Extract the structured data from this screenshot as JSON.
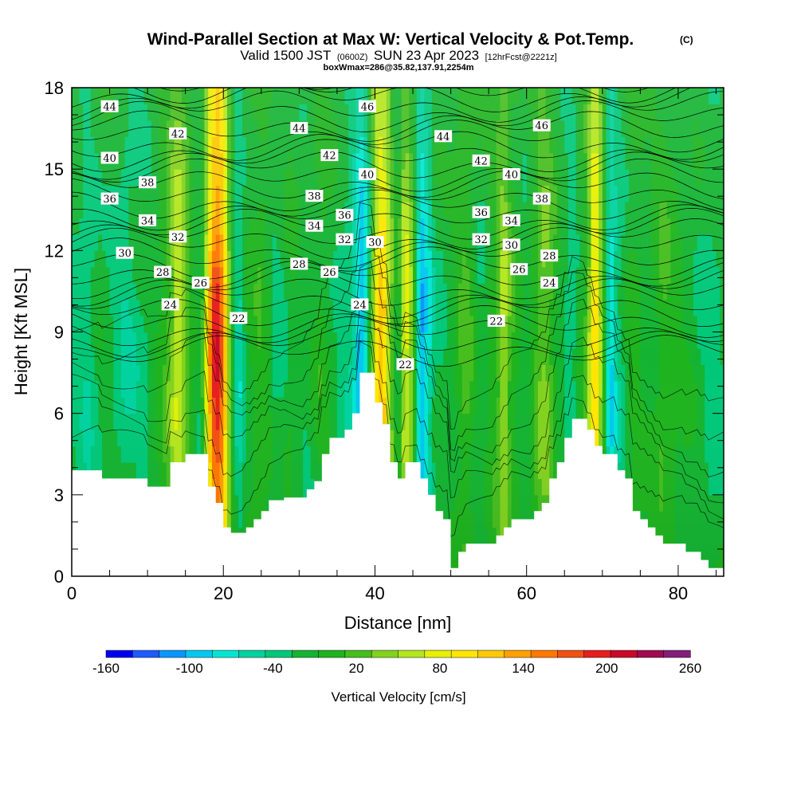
{
  "chart_data": {
    "type": "heatmap",
    "title": "Wind-Parallel Section at Max W: Vertical Velocity & Pot.Temp.",
    "title_mark": "(C)",
    "subtitle_parts": [
      "Valid 1500 JST",
      "(0600Z)",
      "SUN 23 Apr 2023",
      "[12hrFcst@2221z]"
    ],
    "subtitle2": "boxWmax=286@35.82,137.91,2254m",
    "xlabel": "Distance [nm]",
    "ylabel": "Height [Kft MSL]",
    "xlim": [
      0,
      86
    ],
    "ylim": [
      0,
      18
    ],
    "x_ticks": [
      0,
      20,
      40,
      60,
      80
    ],
    "y_ticks": [
      0,
      3,
      6,
      9,
      12,
      15,
      18
    ],
    "colorbar": {
      "label": "Vertical Velocity [cm/s]",
      "tick_labels": [
        "-160",
        "-100",
        "-40",
        "20",
        "80",
        "140",
        "200",
        "260"
      ],
      "tick_values": [
        -160,
        -100,
        -40,
        20,
        80,
        140,
        200,
        260
      ],
      "min": -160,
      "max": 260,
      "step": 20,
      "colors": [
        "#0000f0",
        "#1e5aff",
        "#0a96ff",
        "#00c8f0",
        "#00e6d2",
        "#00d2a0",
        "#00c878",
        "#14b432",
        "#1eb41e",
        "#46be1e",
        "#82d21e",
        "#b4e61e",
        "#e6f000",
        "#ffe600",
        "#ffc800",
        "#ffa000",
        "#ff7800",
        "#f05014",
        "#e61e1e",
        "#c80a28",
        "#a00a50",
        "#821e78"
      ]
    },
    "terrain_nm_kft": [
      [
        0,
        3.9
      ],
      [
        1,
        3.9
      ],
      [
        2,
        3.9
      ],
      [
        3,
        3.9
      ],
      [
        4,
        3.6
      ],
      [
        5,
        3.6
      ],
      [
        6,
        3.6
      ],
      [
        7,
        3.6
      ],
      [
        8,
        3.6
      ],
      [
        9,
        3.6
      ],
      [
        10,
        3.3
      ],
      [
        11,
        3.3
      ],
      [
        12,
        3.3
      ],
      [
        13,
        4.2
      ],
      [
        14,
        4.2
      ],
      [
        15,
        4.5
      ],
      [
        16,
        4.5
      ],
      [
        17,
        4.5
      ],
      [
        18,
        3.3
      ],
      [
        19,
        2.7
      ],
      [
        20,
        1.8
      ],
      [
        21,
        1.6
      ],
      [
        22,
        1.6
      ],
      [
        23,
        1.8
      ],
      [
        24,
        2.1
      ],
      [
        25,
        2.4
      ],
      [
        26,
        2.8
      ],
      [
        27,
        2.8
      ],
      [
        28,
        2.9
      ],
      [
        29,
        2.9
      ],
      [
        30,
        2.9
      ],
      [
        31,
        3.2
      ],
      [
        32,
        3.5
      ],
      [
        33,
        4.5
      ],
      [
        34,
        5.1
      ],
      [
        35,
        5.1
      ],
      [
        36,
        5.4
      ],
      [
        37,
        6.0
      ],
      [
        38,
        7.5
      ],
      [
        39,
        7.5
      ],
      [
        40,
        6.4
      ],
      [
        41,
        5.6
      ],
      [
        42,
        4.2
      ],
      [
        43,
        3.6
      ],
      [
        44,
        4.2
      ],
      [
        45,
        4.2
      ],
      [
        46,
        3.6
      ],
      [
        47,
        3.0
      ],
      [
        48,
        2.4
      ],
      [
        49,
        2.1
      ],
      [
        50,
        0.3
      ],
      [
        51,
        0.9
      ],
      [
        52,
        1.2
      ],
      [
        53,
        1.2
      ],
      [
        54,
        1.2
      ],
      [
        55,
        1.2
      ],
      [
        56,
        1.5
      ],
      [
        57,
        1.8
      ],
      [
        58,
        2.1
      ],
      [
        59,
        2.1
      ],
      [
        60,
        2.1
      ],
      [
        61,
        2.4
      ],
      [
        62,
        2.7
      ],
      [
        63,
        3.6
      ],
      [
        64,
        4.2
      ],
      [
        65,
        5.1
      ],
      [
        66,
        5.8
      ],
      [
        67,
        5.8
      ],
      [
        68,
        5.4
      ],
      [
        69,
        4.8
      ],
      [
        70,
        4.5
      ],
      [
        71,
        4.5
      ],
      [
        72,
        3.9
      ],
      [
        73,
        3.6
      ],
      [
        74,
        2.4
      ],
      [
        75,
        2.1
      ],
      [
        76,
        1.8
      ],
      [
        77,
        1.5
      ],
      [
        78,
        1.2
      ],
      [
        79,
        1.2
      ],
      [
        80,
        1.2
      ],
      [
        81,
        0.9
      ],
      [
        82,
        0.9
      ],
      [
        83,
        0.6
      ],
      [
        84,
        0.3
      ],
      [
        85,
        0.3
      ],
      [
        86,
        0.3
      ]
    ],
    "w_columns_nm_cms": [
      [
        0,
        -20
      ],
      [
        2,
        -40
      ],
      [
        4,
        -10
      ],
      [
        7,
        -40
      ],
      [
        10,
        -20
      ],
      [
        12,
        10
      ],
      [
        13,
        40
      ],
      [
        14,
        90
      ],
      [
        15,
        50
      ],
      [
        16,
        0
      ],
      [
        17,
        -20
      ],
      [
        18,
        120
      ],
      [
        19,
        230
      ],
      [
        20,
        170
      ],
      [
        21,
        10
      ],
      [
        22,
        -60
      ],
      [
        23,
        -10
      ],
      [
        25,
        20
      ],
      [
        27,
        -30
      ],
      [
        29,
        0
      ],
      [
        31,
        -20
      ],
      [
        33,
        10
      ],
      [
        35,
        -20
      ],
      [
        37,
        -40
      ],
      [
        38,
        -110
      ],
      [
        39,
        -60
      ],
      [
        40,
        90
      ],
      [
        41,
        150
      ],
      [
        42,
        60
      ],
      [
        43,
        -20
      ],
      [
        44,
        100
      ],
      [
        45,
        40
      ],
      [
        46,
        -110
      ],
      [
        47,
        -70
      ],
      [
        48,
        -20
      ],
      [
        50,
        -10
      ],
      [
        52,
        30
      ],
      [
        54,
        -20
      ],
      [
        56,
        20
      ],
      [
        57,
        70
      ],
      [
        58,
        20
      ],
      [
        60,
        -20
      ],
      [
        62,
        50
      ],
      [
        63,
        40
      ],
      [
        64,
        0
      ],
      [
        66,
        -40
      ],
      [
        68,
        30
      ],
      [
        69,
        140
      ],
      [
        70,
        40
      ],
      [
        71,
        -90
      ],
      [
        72,
        -40
      ],
      [
        74,
        10
      ],
      [
        76,
        -10
      ],
      [
        78,
        20
      ],
      [
        80,
        0
      ],
      [
        82,
        -10
      ],
      [
        84,
        -30
      ],
      [
        86,
        -20
      ]
    ],
    "theta_labels": [
      {
        "text": "44",
        "x": 5,
        "y": 17.3
      },
      {
        "text": "42",
        "x": 14,
        "y": 16.3
      },
      {
        "text": "40",
        "x": 5,
        "y": 15.4
      },
      {
        "text": "38",
        "x": 10,
        "y": 14.5
      },
      {
        "text": "36",
        "x": 5,
        "y": 13.9
      },
      {
        "text": "34",
        "x": 10,
        "y": 13.1
      },
      {
        "text": "32",
        "x": 14,
        "y": 12.5
      },
      {
        "text": "30",
        "x": 7,
        "y": 11.9
      },
      {
        "text": "28",
        "x": 12,
        "y": 11.2
      },
      {
        "text": "26",
        "x": 17,
        "y": 10.8
      },
      {
        "text": "24",
        "x": 13,
        "y": 10.0
      },
      {
        "text": "22",
        "x": 22,
        "y": 9.5
      },
      {
        "text": "46",
        "x": 39,
        "y": 17.3
      },
      {
        "text": "44",
        "x": 30,
        "y": 16.5
      },
      {
        "text": "42",
        "x": 34,
        "y": 15.5
      },
      {
        "text": "40",
        "x": 39,
        "y": 14.8
      },
      {
        "text": "38",
        "x": 32,
        "y": 14.0
      },
      {
        "text": "36",
        "x": 36,
        "y": 13.3
      },
      {
        "text": "34",
        "x": 32,
        "y": 12.9
      },
      {
        "text": "32",
        "x": 36,
        "y": 12.4
      },
      {
        "text": "30",
        "x": 40,
        "y": 12.3
      },
      {
        "text": "28",
        "x": 30,
        "y": 11.5
      },
      {
        "text": "26",
        "x": 34,
        "y": 11.2
      },
      {
        "text": "24",
        "x": 38,
        "y": 10.0
      },
      {
        "text": "22",
        "x": 44,
        "y": 7.8
      },
      {
        "text": "44",
        "x": 49,
        "y": 16.2
      },
      {
        "text": "42",
        "x": 54,
        "y": 15.3
      },
      {
        "text": "46",
        "x": 62,
        "y": 16.6
      },
      {
        "text": "40",
        "x": 58,
        "y": 14.8
      },
      {
        "text": "38",
        "x": 62,
        "y": 13.9
      },
      {
        "text": "36",
        "x": 54,
        "y": 13.4
      },
      {
        "text": "34",
        "x": 58,
        "y": 13.1
      },
      {
        "text": "32",
        "x": 54,
        "y": 12.4
      },
      {
        "text": "30",
        "x": 58,
        "y": 12.2
      },
      {
        "text": "28",
        "x": 63,
        "y": 11.8
      },
      {
        "text": "26",
        "x": 59,
        "y": 11.3
      },
      {
        "text": "24",
        "x": 63,
        "y": 10.8
      },
      {
        "text": "22",
        "x": 56,
        "y": 9.4
      }
    ]
  }
}
